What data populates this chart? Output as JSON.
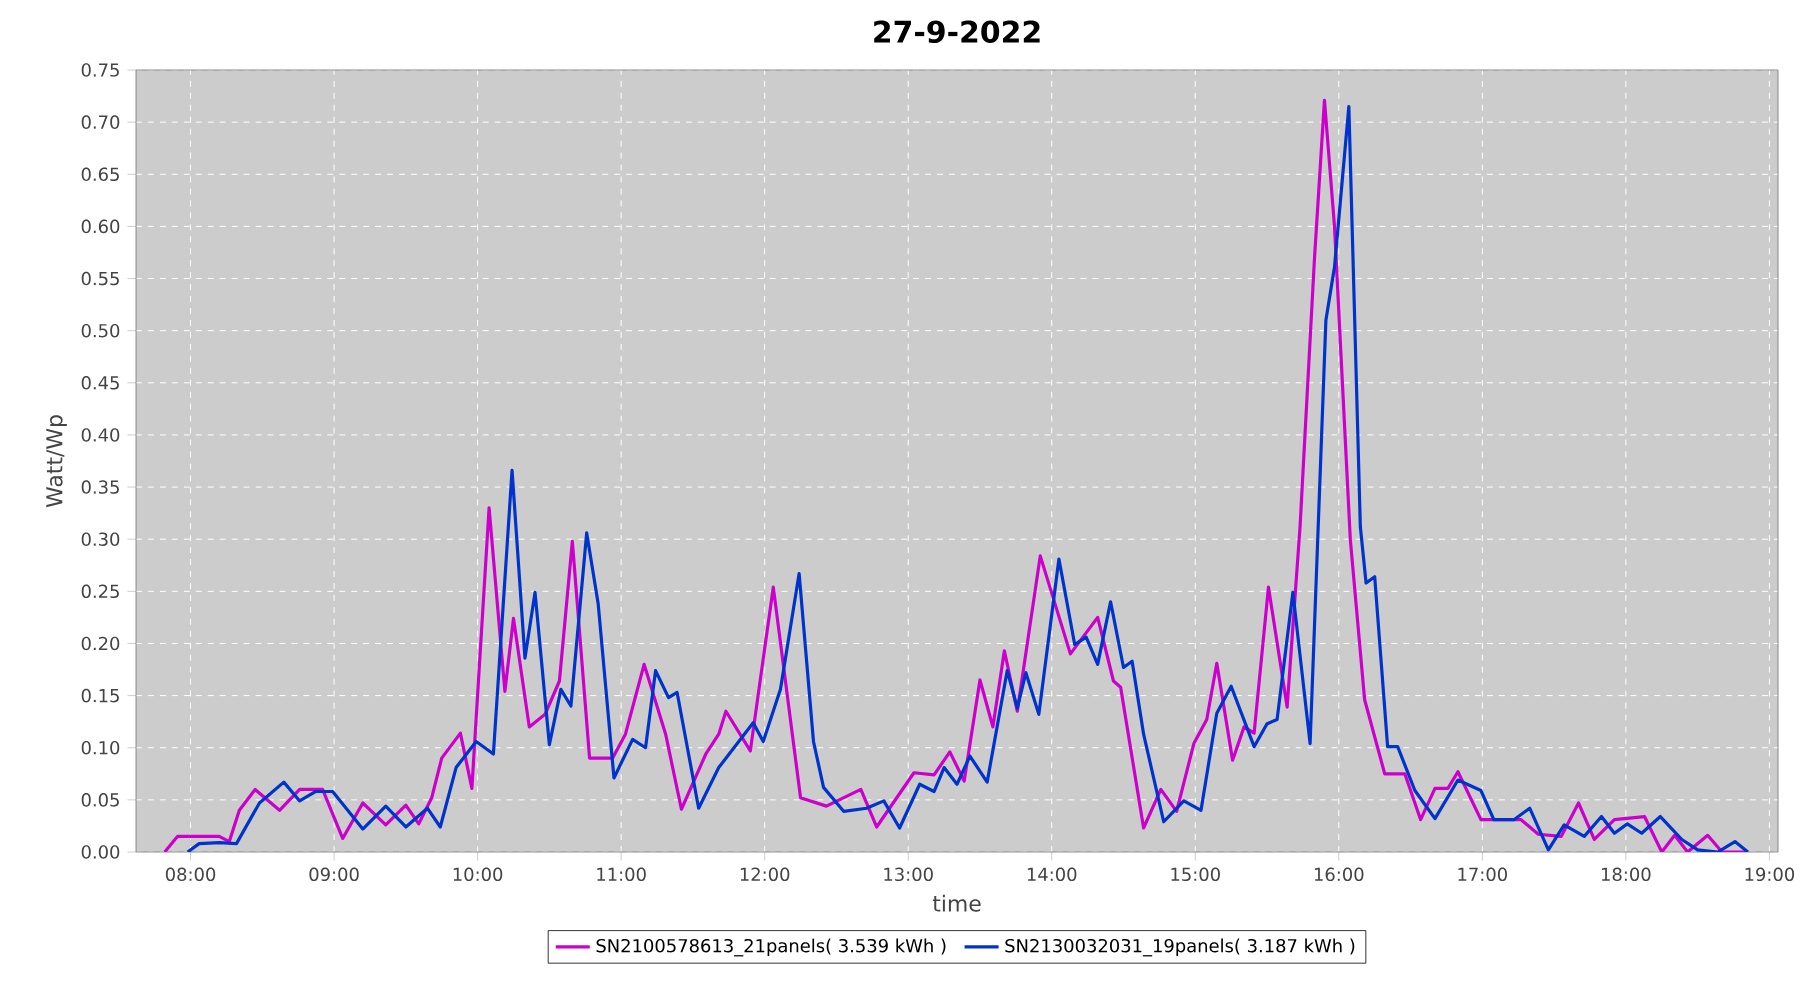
{
  "chart_data": {
    "type": "line",
    "title": "27-9-2022",
    "xlabel": "time",
    "ylabel": "Watt/Wp",
    "xlim": [
      7.62,
      19.06
    ],
    "ylim": [
      0,
      0.75
    ],
    "xticks": [
      {
        "value": 8,
        "label": "08:00"
      },
      {
        "value": 9,
        "label": "09:00"
      },
      {
        "value": 10,
        "label": "10:00"
      },
      {
        "value": 11,
        "label": "11:00"
      },
      {
        "value": 12,
        "label": "12:00"
      },
      {
        "value": 13,
        "label": "13:00"
      },
      {
        "value": 14,
        "label": "14:00"
      },
      {
        "value": 15,
        "label": "15:00"
      },
      {
        "value": 16,
        "label": "16:00"
      },
      {
        "value": 17,
        "label": "17:00"
      },
      {
        "value": 18,
        "label": "18:00"
      },
      {
        "value": 19,
        "label": "19:00"
      }
    ],
    "yticks": [
      {
        "value": 0,
        "label": "0.00"
      },
      {
        "value": 0.05,
        "label": "0.05"
      },
      {
        "value": 0.1,
        "label": "0.10"
      },
      {
        "value": 0.15,
        "label": "0.15"
      },
      {
        "value": 0.2,
        "label": "0.20"
      },
      {
        "value": 0.25,
        "label": "0.25"
      },
      {
        "value": 0.3,
        "label": "0.30"
      },
      {
        "value": 0.35,
        "label": "0.35"
      },
      {
        "value": 0.4,
        "label": "0.40"
      },
      {
        "value": 0.45,
        "label": "0.45"
      },
      {
        "value": 0.5,
        "label": "0.50"
      },
      {
        "value": 0.55,
        "label": "0.55"
      },
      {
        "value": 0.6,
        "label": "0.60"
      },
      {
        "value": 0.65,
        "label": "0.65"
      },
      {
        "value": 0.7,
        "label": "0.70"
      },
      {
        "value": 0.75,
        "label": "0.75"
      }
    ],
    "grid": true,
    "legend": "bottom",
    "line_style": "solid",
    "series": [
      {
        "name": "SN2100578613_21panels( 3.539 kWh )",
        "color": "#cc00cc",
        "x": [
          7.82,
          7.91,
          8.2,
          8.27,
          8.34,
          8.45,
          8.62,
          8.76,
          8.92,
          9.06,
          9.2,
          9.36,
          9.5,
          9.59,
          9.68,
          9.75,
          9.88,
          9.96,
          10.08,
          10.19,
          10.25,
          10.36,
          10.47,
          10.57,
          10.66,
          10.78,
          10.94,
          11.03,
          11.16,
          11.31,
          11.42,
          11.59,
          11.68,
          11.73,
          11.9,
          12.06,
          12.25,
          12.43,
          12.67,
          12.78,
          13.04,
          13.18,
          13.29,
          13.39,
          13.5,
          13.59,
          13.67,
          13.76,
          13.92,
          14.13,
          14.32,
          14.43,
          14.48,
          14.64,
          14.76,
          14.87,
          14.99,
          15.08,
          15.15,
          15.26,
          15.34,
          15.41,
          15.51,
          15.64,
          15.73,
          15.83,
          15.9,
          15.97,
          16.08,
          16.18,
          16.32,
          16.46,
          16.57,
          16.67,
          16.76,
          16.83,
          16.99,
          17.27,
          17.39,
          17.55,
          17.67,
          17.78,
          17.92,
          18.13,
          18.25,
          18.34,
          18.43,
          18.57,
          18.67,
          18.83
        ],
        "values": [
          0.0,
          0.015,
          0.015,
          0.01,
          0.04,
          0.06,
          0.04,
          0.06,
          0.06,
          0.013,
          0.047,
          0.026,
          0.045,
          0.027,
          0.052,
          0.09,
          0.114,
          0.061,
          0.33,
          0.154,
          0.224,
          0.12,
          0.132,
          0.164,
          0.298,
          0.09,
          0.09,
          0.113,
          0.18,
          0.113,
          0.041,
          0.094,
          0.113,
          0.135,
          0.097,
          0.254,
          0.052,
          0.044,
          0.06,
          0.024,
          0.076,
          0.074,
          0.096,
          0.068,
          0.165,
          0.12,
          0.193,
          0.135,
          0.284,
          0.19,
          0.225,
          0.164,
          0.158,
          0.023,
          0.06,
          0.039,
          0.104,
          0.127,
          0.181,
          0.088,
          0.12,
          0.114,
          0.254,
          0.139,
          0.312,
          0.568,
          0.721,
          0.6,
          0.3,
          0.146,
          0.075,
          0.075,
          0.031,
          0.061,
          0.061,
          0.077,
          0.031,
          0.031,
          0.017,
          0.015,
          0.047,
          0.012,
          0.031,
          0.034,
          0.0,
          0.016,
          0.0,
          0.016,
          0.0,
          0.0
        ]
      },
      {
        "name": "SN2130032031_19panels( 3.187 kWh )",
        "color": "#0033cc",
        "x": [
          7.98,
          8.06,
          8.2,
          8.32,
          8.48,
          8.65,
          8.76,
          8.87,
          8.99,
          9.2,
          9.36,
          9.5,
          9.65,
          9.74,
          9.85,
          9.99,
          10.11,
          10.24,
          10.33,
          10.4,
          10.5,
          10.58,
          10.65,
          10.76,
          10.84,
          10.95,
          11.08,
          11.17,
          11.24,
          11.33,
          11.39,
          11.54,
          11.68,
          11.92,
          11.99,
          12.11,
          12.24,
          12.34,
          12.41,
          12.55,
          12.71,
          12.83,
          12.94,
          13.08,
          13.18,
          13.25,
          13.34,
          13.43,
          13.55,
          13.69,
          13.76,
          13.82,
          13.91,
          14.05,
          14.16,
          14.24,
          14.32,
          14.41,
          14.5,
          14.56,
          14.64,
          14.78,
          14.92,
          15.04,
          15.15,
          15.25,
          15.41,
          15.5,
          15.57,
          15.68,
          15.8,
          15.91,
          15.97,
          16.07,
          16.15,
          16.19,
          16.25,
          16.34,
          16.41,
          16.53,
          16.67,
          16.83,
          16.99,
          17.08,
          17.22,
          17.33,
          17.46,
          17.57,
          17.71,
          17.83,
          17.92,
          18.01,
          18.11,
          18.24,
          18.39,
          18.5,
          18.64,
          18.76,
          18.85
        ],
        "values": [
          0.0,
          0.008,
          0.009,
          0.008,
          0.047,
          0.067,
          0.049,
          0.058,
          0.058,
          0.022,
          0.044,
          0.024,
          0.042,
          0.024,
          0.081,
          0.106,
          0.094,
          0.366,
          0.186,
          0.249,
          0.103,
          0.156,
          0.14,
          0.306,
          0.238,
          0.071,
          0.108,
          0.1,
          0.174,
          0.148,
          0.153,
          0.042,
          0.081,
          0.124,
          0.106,
          0.156,
          0.267,
          0.106,
          0.062,
          0.039,
          0.042,
          0.049,
          0.023,
          0.065,
          0.058,
          0.081,
          0.065,
          0.092,
          0.067,
          0.174,
          0.138,
          0.172,
          0.132,
          0.281,
          0.199,
          0.206,
          0.18,
          0.24,
          0.177,
          0.183,
          0.113,
          0.029,
          0.049,
          0.04,
          0.133,
          0.159,
          0.101,
          0.123,
          0.127,
          0.249,
          0.104,
          0.51,
          0.561,
          0.715,
          0.312,
          0.258,
          0.264,
          0.101,
          0.101,
          0.059,
          0.032,
          0.069,
          0.059,
          0.031,
          0.031,
          0.042,
          0.002,
          0.026,
          0.015,
          0.034,
          0.018,
          0.027,
          0.018,
          0.034,
          0.012,
          0.002,
          0.0,
          0.01,
          0.0
        ]
      }
    ]
  }
}
